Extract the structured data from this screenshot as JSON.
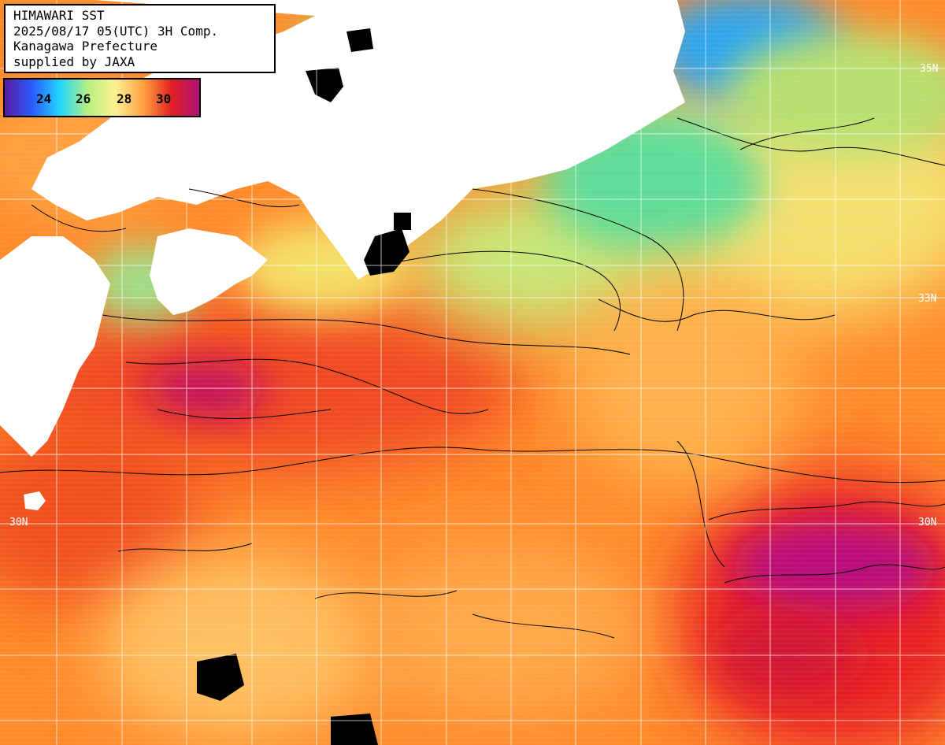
{
  "header": {
    "line1": "HIMAWARI SST",
    "line2": "2025/08/17 05(UTC) 3H Comp.",
    "line3": "Kanagawa Prefecture",
    "line4": "supplied by JAXA"
  },
  "legend": {
    "ticks": [
      "24",
      "26",
      "28",
      "30"
    ],
    "colors": [
      "#5a1aa0",
      "#2a5cff",
      "#22d8ff",
      "#b8f080",
      "#fff090",
      "#ffa040",
      "#e02020",
      "#b0107a"
    ]
  },
  "latitude_labels": {
    "lat35": "35N",
    "lat33": "33N",
    "lat30_left": "30N",
    "lat30_right": "30N"
  },
  "colors": {
    "land": "#ffffff",
    "no_data": "#000000",
    "grid": "#ffffff",
    "contour": "#000000"
  }
}
